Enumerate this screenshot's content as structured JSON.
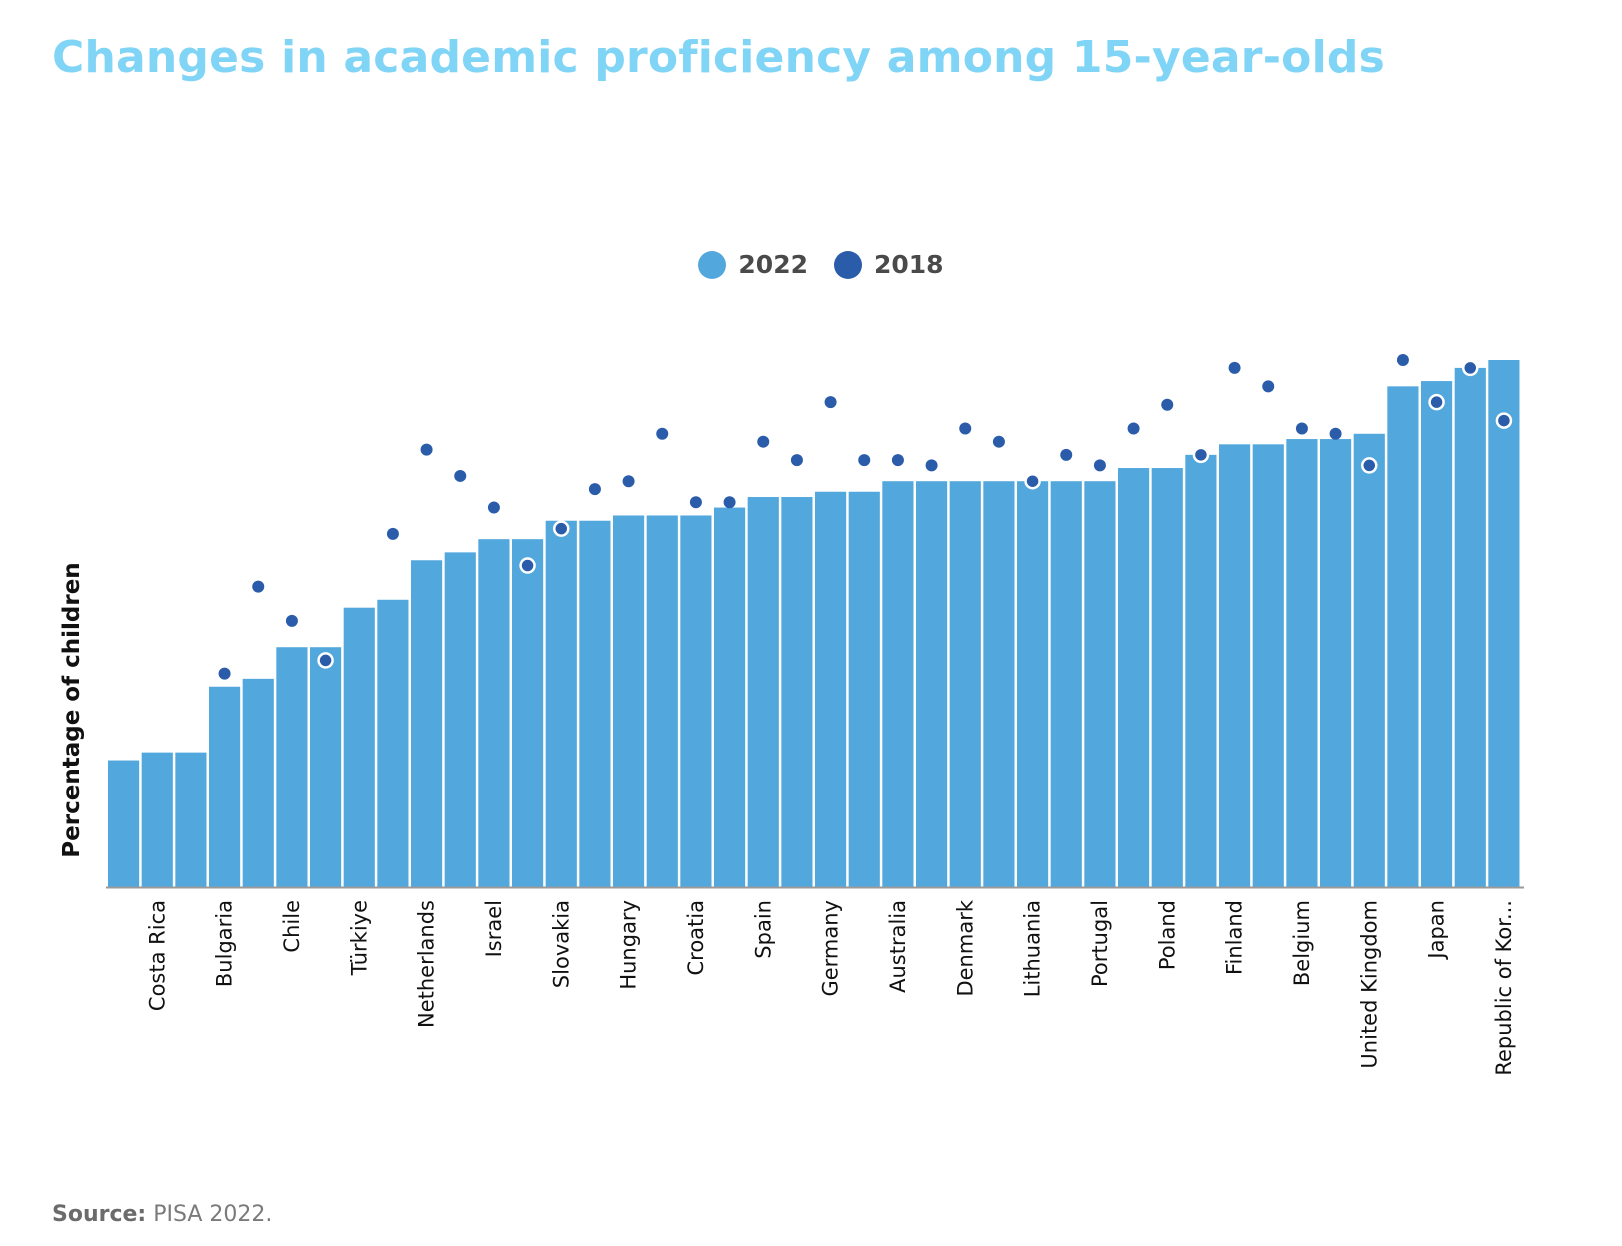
{
  "title": "Changes in academic proficiency among 15-year-olds",
  "legend": [
    {
      "label": "2022",
      "color": "#52a8dd"
    },
    {
      "label": "2018",
      "color": "#2a5caa"
    }
  ],
  "ylabel": "Percentage of children",
  "source_label": "Source:",
  "source_text": "PISA 2022.",
  "chart_data": {
    "type": "bar",
    "title": "Changes in academic proficiency among 15-year-olds",
    "xlabel": "",
    "ylabel": "Percentage of children",
    "ylim": [
      0,
      100
    ],
    "grid": false,
    "legend_position": "top-center",
    "categories": [
      "",
      "Costa Rica",
      "",
      "Bulgaria",
      "",
      "Chile",
      "",
      "Türkiye",
      "",
      "Netherlands",
      "",
      "Israel",
      "",
      "Slovakia",
      "",
      "Hungary",
      "",
      "Croatia",
      "",
      "Spain",
      "",
      "Germany",
      "",
      "Australia",
      "",
      "Denmark",
      "",
      "Lithuania",
      "",
      "Portugal",
      "",
      "Poland",
      "",
      "Finland",
      "",
      "Belgium",
      "",
      "United Kingdom",
      "",
      "Japan",
      "",
      "Republic of Kor..."
    ],
    "series": [
      {
        "name": "2022",
        "type": "bar",
        "color": "#52a8dd",
        "values": [
          24,
          25.5,
          25.5,
          38,
          39.5,
          45.5,
          45.5,
          53,
          54.5,
          62,
          63.5,
          66,
          66,
          69.5,
          69.5,
          70.5,
          70.5,
          70.5,
          72,
          74,
          74,
          75,
          75,
          77,
          77,
          77,
          77,
          77,
          77,
          77,
          79.5,
          79.5,
          82,
          84,
          84,
          85,
          85,
          86,
          95,
          96,
          98.5,
          100
        ]
      },
      {
        "name": "2018",
        "type": "scatter",
        "color": "#2a5caa",
        "values": [
          null,
          null,
          null,
          40.5,
          57,
          50.5,
          43,
          null,
          67,
          83,
          78,
          72,
          61,
          68,
          75.5,
          77,
          86,
          73,
          73,
          84.5,
          81,
          92,
          81,
          81,
          80,
          87,
          84.5,
          77,
          82,
          80,
          87,
          91.5,
          82,
          98.5,
          95,
          87,
          86,
          80,
          100,
          92,
          98.5,
          88.5
        ]
      }
    ]
  }
}
